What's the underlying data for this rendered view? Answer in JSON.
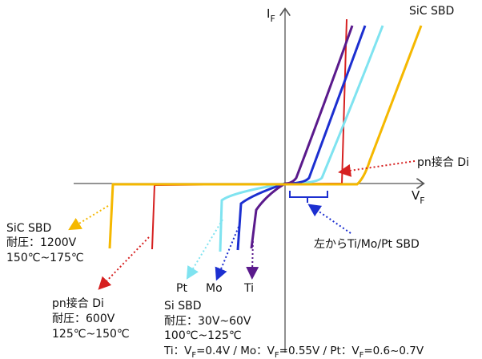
{
  "axes": {
    "y_label_main": "I",
    "y_label_sub": "F",
    "x_label_main": "V",
    "x_label_sub": "F"
  },
  "curve_labels": {
    "sic_sbd_top": "SiC SBD",
    "pn_di_right": "pn接合 Di",
    "compare_note": "左からTi/Mo/Pt SBD",
    "pt": "Pt",
    "mo": "Mo",
    "ti": "Ti"
  },
  "sic_block": {
    "title": "SiC SBD",
    "voltage": "耐圧：1200V",
    "temp": "150℃~175℃"
  },
  "pn_block": {
    "title": "pn接合 Di",
    "voltage": "耐圧：600V",
    "temp": "125℃~150℃"
  },
  "si_block": {
    "title": "Si SBD",
    "voltage": "耐圧：30V~60V",
    "temp": "100℃~125℃",
    "vf_ti_prefix": "Ti：V",
    "vf_ti_value": "=0.4V / Mo：V",
    "vf_mo_value": "=0.55V / Pt：V",
    "vf_pt_value": "=0.6~0.7V",
    "vf_sub": "F"
  },
  "colors": {
    "sic": "#f5b800",
    "pn": "#d62020",
    "pt": "#7fe3f0",
    "mo": "#1c2fd0",
    "ti": "#5a1a8c",
    "axis": "#555555"
  }
}
